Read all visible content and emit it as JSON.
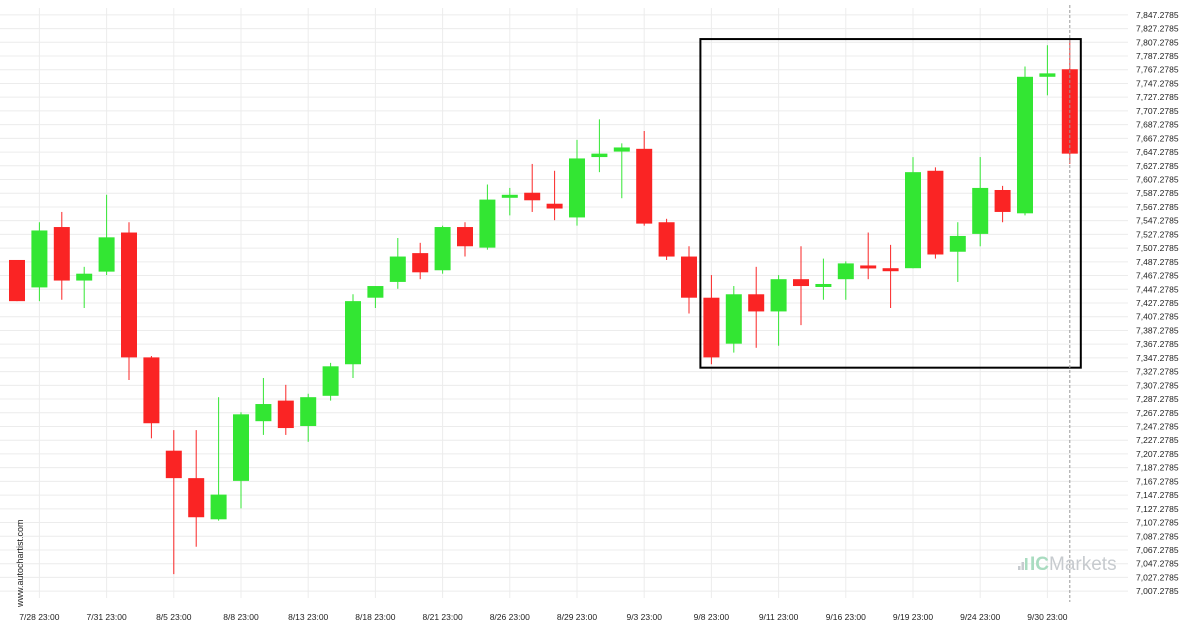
{
  "colors": {
    "up": "#33e633",
    "down": "#fa2424",
    "grid": "#ececec",
    "box": "#000000",
    "current_line": "#999999",
    "brand_accent": "#a9dcc0",
    "brand_text": "#c7cbcf"
  },
  "watermark": "www.autochartist.com",
  "brand": {
    "prefix": "IC",
    "suffix": "Markets",
    "icon": "bars-logo-icon"
  },
  "chart_data": {
    "type": "candlestick",
    "y_axis_side": "right",
    "ylim": [
      6997.2785,
      7857.2785
    ],
    "yticks": [
      7847.2785,
      7827.2785,
      7807.2785,
      7787.2785,
      7767.2785,
      7747.2785,
      7727.2785,
      7707.2785,
      7687.2785,
      7667.2785,
      7647.2785,
      7627.2785,
      7607.2785,
      7587.2785,
      7567.2785,
      7547.2785,
      7527.2785,
      7507.2785,
      7487.2785,
      7467.2785,
      7447.2785,
      7427.2785,
      7407.2785,
      7387.2785,
      7367.2785,
      7347.2785,
      7327.2785,
      7307.2785,
      7287.2785,
      7267.2785,
      7247.2785,
      7227.2785,
      7207.2785,
      7187.2785,
      7167.2785,
      7147.2785,
      7127.2785,
      7107.2785,
      7087.2785,
      7067.2785,
      7047.2785,
      7027.2785,
      7007.2785
    ],
    "ytick_labels": [
      "7,847.2785",
      "7,827.2785",
      "7,807.2785",
      "7,787.2785",
      "7,767.2785",
      "7,747.2785",
      "7,727.2785",
      "7,707.2785",
      "7,687.2785",
      "7,667.2785",
      "7,647.2785",
      "7,627.2785",
      "7,607.2785",
      "7,587.2785",
      "7,567.2785",
      "7,547.2785",
      "7,527.2785",
      "7,507.2785",
      "7,487.2785",
      "7,467.2785",
      "7,447.2785",
      "7,427.2785",
      "7,407.2785",
      "7,387.2785",
      "7,367.2785",
      "7,347.2785",
      "7,327.2785",
      "7,307.2785",
      "7,287.2785",
      "7,267.2785",
      "7,247.2785",
      "7,227.2785",
      "7,207.2785",
      "7,187.2785",
      "7,167.2785",
      "7,147.2785",
      "7,127.2785",
      "7,107.2785",
      "7,087.2785",
      "7,067.2785",
      "7,047.2785",
      "7,027.2785",
      "7,007.2785"
    ],
    "xticks": [
      {
        "label": "7/28 23:00",
        "index": 1
      },
      {
        "label": "7/31 23:00",
        "index": 4
      },
      {
        "label": "8/5 23:00",
        "index": 7
      },
      {
        "label": "8/8 23:00",
        "index": 10
      },
      {
        "label": "8/13 23:00",
        "index": 13
      },
      {
        "label": "8/18 23:00",
        "index": 16
      },
      {
        "label": "8/21 23:00",
        "index": 19
      },
      {
        "label": "8/26 23:00",
        "index": 22
      },
      {
        "label": "8/29 23:00",
        "index": 25
      },
      {
        "label": "9/3 23:00",
        "index": 28
      },
      {
        "label": "9/8 23:00",
        "index": 31
      },
      {
        "label": "9/11 23:00",
        "index": 34
      },
      {
        "label": "9/16 23:00",
        "index": 37
      },
      {
        "label": "9/19 23:00",
        "index": 40
      },
      {
        "label": "9/24 23:00",
        "index": 43
      },
      {
        "label": "9/30 23:00",
        "index": 46
      }
    ],
    "candles": [
      {
        "o": 7490,
        "h": 7490,
        "l": 7430,
        "c": 7430
      },
      {
        "o": 7450,
        "h": 7545,
        "l": 7430,
        "c": 7533
      },
      {
        "o": 7538,
        "h": 7560,
        "l": 7432,
        "c": 7460
      },
      {
        "o": 7460,
        "h": 7480,
        "l": 7420,
        "c": 7470
      },
      {
        "o": 7473,
        "h": 7585,
        "l": 7468,
        "c": 7523
      },
      {
        "o": 7530,
        "h": 7545,
        "l": 7315,
        "c": 7348
      },
      {
        "o": 7348,
        "h": 7350,
        "l": 7230,
        "c": 7252
      },
      {
        "o": 7212,
        "h": 7242,
        "l": 7032,
        "c": 7172
      },
      {
        "o": 7172,
        "h": 7242,
        "l": 7072,
        "c": 7115
      },
      {
        "o": 7112,
        "h": 7290,
        "l": 7110,
        "c": 7148
      },
      {
        "o": 7168,
        "h": 7268,
        "l": 7128,
        "c": 7265
      },
      {
        "o": 7255,
        "h": 7318,
        "l": 7235,
        "c": 7280
      },
      {
        "o": 7285,
        "h": 7308,
        "l": 7235,
        "c": 7245
      },
      {
        "o": 7248,
        "h": 7295,
        "l": 7225,
        "c": 7290
      },
      {
        "o": 7292,
        "h": 7340,
        "l": 7285,
        "c": 7335
      },
      {
        "o": 7338,
        "h": 7440,
        "l": 7318,
        "c": 7430
      },
      {
        "o": 7435,
        "h": 7452,
        "l": 7420,
        "c": 7452
      },
      {
        "o": 7458,
        "h": 7522,
        "l": 7448,
        "c": 7495
      },
      {
        "o": 7500,
        "h": 7515,
        "l": 7462,
        "c": 7472
      },
      {
        "o": 7475,
        "h": 7540,
        "l": 7470,
        "c": 7538
      },
      {
        "o": 7538,
        "h": 7545,
        "l": 7495,
        "c": 7510
      },
      {
        "o": 7508,
        "h": 7600,
        "l": 7505,
        "c": 7578
      },
      {
        "o": 7585,
        "h": 7595,
        "l": 7555,
        "c": 7585
      },
      {
        "o": 7588,
        "h": 7630,
        "l": 7560,
        "c": 7577
      },
      {
        "o": 7572,
        "h": 7620,
        "l": 7548,
        "c": 7565
      },
      {
        "o": 7552,
        "h": 7665,
        "l": 7540,
        "c": 7638
      },
      {
        "o": 7640,
        "h": 7695,
        "l": 7618,
        "c": 7645
      },
      {
        "o": 7648,
        "h": 7660,
        "l": 7580,
        "c": 7654
      },
      {
        "o": 7652,
        "h": 7678,
        "l": 7540,
        "c": 7543
      },
      {
        "o": 7545,
        "h": 7550,
        "l": 7490,
        "c": 7495
      },
      {
        "o": 7495,
        "h": 7510,
        "l": 7412,
        "c": 7435
      },
      {
        "o": 7435,
        "h": 7468,
        "l": 7338,
        "c": 7348
      },
      {
        "o": 7368,
        "h": 7452,
        "l": 7355,
        "c": 7440
      },
      {
        "o": 7440,
        "h": 7480,
        "l": 7362,
        "c": 7415
      },
      {
        "o": 7415,
        "h": 7468,
        "l": 7365,
        "c": 7462
      },
      {
        "o": 7462,
        "h": 7510,
        "l": 7395,
        "c": 7452
      },
      {
        "o": 7455,
        "h": 7492,
        "l": 7432,
        "c": 7455
      },
      {
        "o": 7462,
        "h": 7488,
        "l": 7432,
        "c": 7485
      },
      {
        "o": 7482,
        "h": 7530,
        "l": 7462,
        "c": 7478
      },
      {
        "o": 7478,
        "h": 7512,
        "l": 7420,
        "c": 7475
      },
      {
        "o": 7478,
        "h": 7640,
        "l": 7478,
        "c": 7618
      },
      {
        "o": 7620,
        "h": 7625,
        "l": 7492,
        "c": 7498
      },
      {
        "o": 7502,
        "h": 7545,
        "l": 7458,
        "c": 7525
      },
      {
        "o": 7528,
        "h": 7640,
        "l": 7510,
        "c": 7595
      },
      {
        "o": 7592,
        "h": 7598,
        "l": 7545,
        "c": 7560
      },
      {
        "o": 7558,
        "h": 7772,
        "l": 7555,
        "c": 7757
      },
      {
        "o": 7757,
        "h": 7803,
        "l": 7730,
        "c": 7762
      },
      {
        "o": 7768,
        "h": 7812,
        "l": 7630,
        "c": 7645
      }
    ],
    "highlight_box": {
      "from_index": 31,
      "to_index": 47,
      "price_high": 7812,
      "price_low": 7333
    },
    "current_line_index": 47
  }
}
